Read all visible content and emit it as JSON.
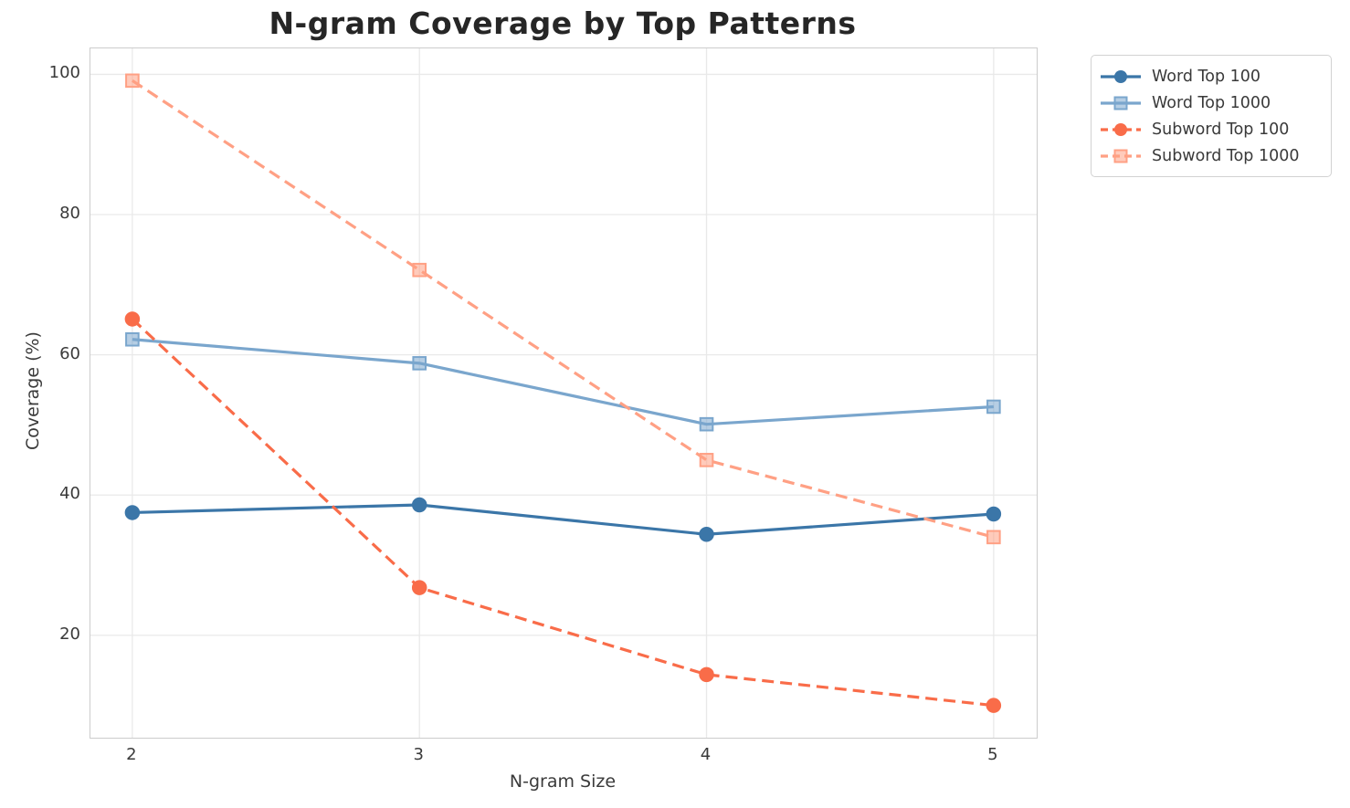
{
  "chart_data": {
    "type": "line",
    "title": "N-gram Coverage by Top Patterns",
    "xlabel": "N-gram Size",
    "ylabel": "Coverage (%)",
    "x": [
      2,
      3,
      4,
      5
    ],
    "x_tick_labels": [
      "2",
      "3",
      "4",
      "5"
    ],
    "y_ticks": [
      20,
      40,
      60,
      80,
      100
    ],
    "xlim": [
      1.854,
      5.15
    ],
    "ylim": [
      5.4,
      103.7
    ],
    "grid": true,
    "legend_position": "outside-upper-right",
    "series": [
      {
        "name": "Word Top 100",
        "values": [
          37.5,
          38.6,
          34.4,
          37.3
        ],
        "color": "#3b76a8",
        "line_style": "solid",
        "marker": "circle"
      },
      {
        "name": "Word Top 1000",
        "values": [
          62.2,
          58.8,
          50.1,
          52.6
        ],
        "color": "#7aa6cd",
        "line_style": "solid",
        "marker": "square"
      },
      {
        "name": "Subword Top 100",
        "values": [
          65.1,
          26.8,
          14.4,
          10.0
        ],
        "color": "#f96c49",
        "line_style": "dashed",
        "marker": "circle"
      },
      {
        "name": "Subword Top 1000",
        "values": [
          99.1,
          72.1,
          45.0,
          34.0
        ],
        "color": "#ffa084",
        "line_style": "dashed",
        "marker": "square"
      }
    ],
    "style": {
      "grid_color": "#e9e9e9",
      "spine_color": "#cccccc",
      "tick_text_color": "#3a3a3a",
      "title_color": "#262626",
      "line_width": 3.2,
      "dash_pattern": "13 7"
    }
  }
}
